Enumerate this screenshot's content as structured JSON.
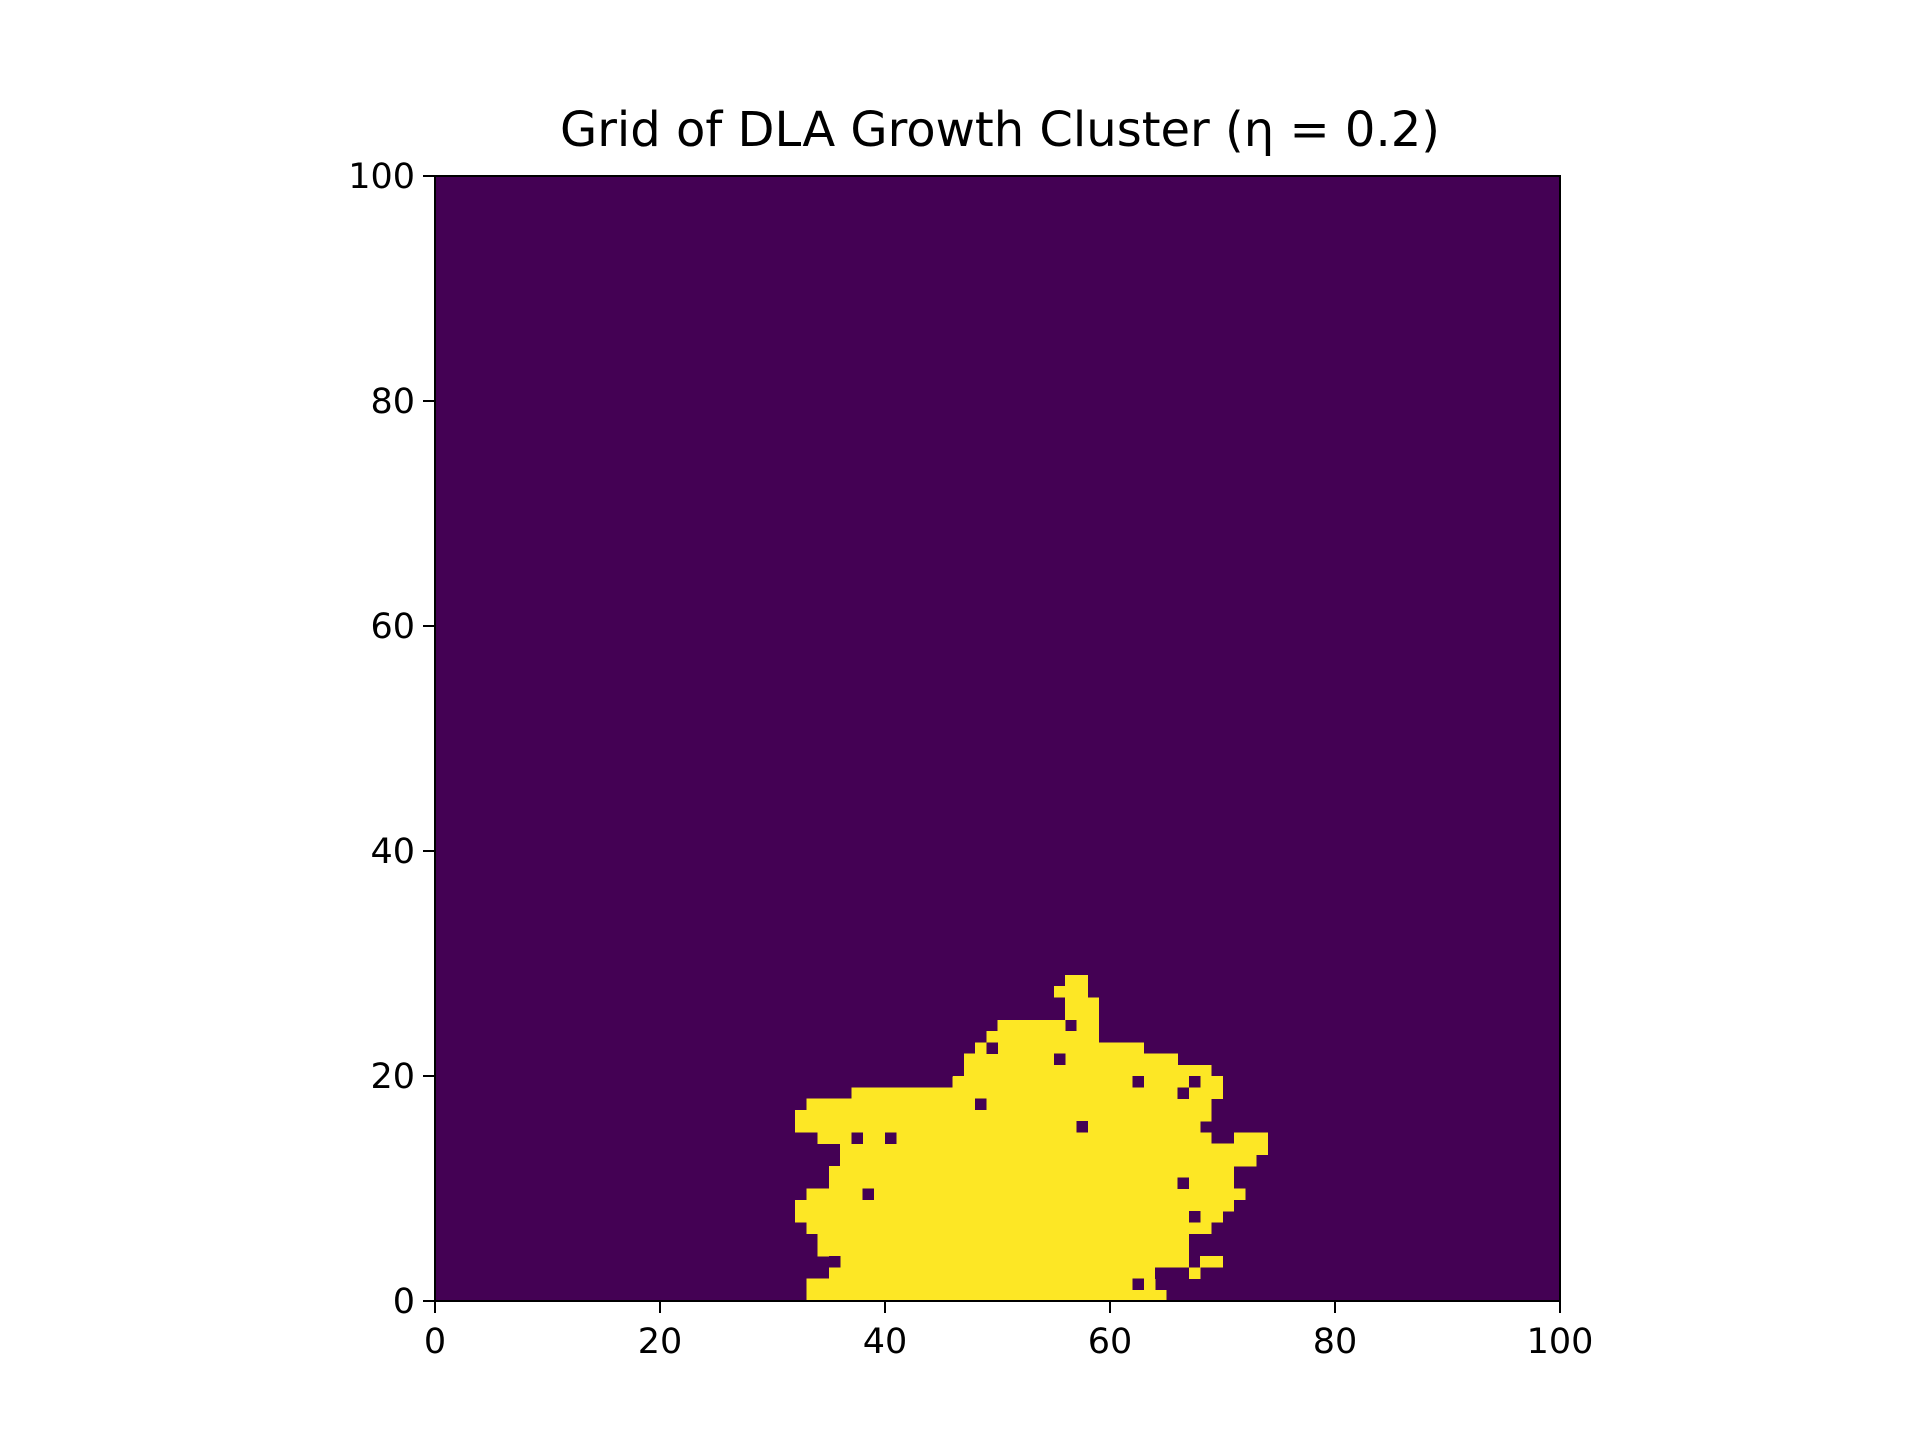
{
  "chart_data": {
    "type": "heatmap",
    "title": "Grid of DLA Growth Cluster (η = 0.2)",
    "xlabel": "",
    "ylabel": "",
    "xlim": [
      0,
      100
    ],
    "ylim": [
      0,
      100
    ],
    "x_ticks": [
      0,
      20,
      40,
      60,
      80,
      100
    ],
    "y_ticks": [
      0,
      20,
      40,
      60,
      80,
      100
    ],
    "x_tick_labels": [
      "0",
      "20",
      "40",
      "60",
      "80",
      "100"
    ],
    "y_tick_labels": [
      "0",
      "20",
      "40",
      "60",
      "80",
      "100"
    ],
    "grid": false,
    "legend": "none",
    "colormap": "viridis",
    "colors": {
      "empty": "#440154",
      "occupied": "#fde725",
      "axes": "#000000",
      "background": "#ffffff"
    },
    "grid_size": [
      100,
      100
    ],
    "cell_values": {
      "empty": 0,
      "occupied": 1
    },
    "occupied_rows": [
      {
        "y": 0,
        "spans": [
          [
            33,
            64
          ]
        ]
      },
      {
        "y": 1,
        "spans": [
          [
            33,
            63
          ]
        ]
      },
      {
        "y": 2,
        "spans": [
          [
            35,
            64
          ],
          [
            67,
            67
          ]
        ]
      },
      {
        "y": 3,
        "spans": [
          [
            35,
            66
          ],
          [
            68,
            69
          ]
        ]
      },
      {
        "y": 4,
        "spans": [
          [
            34,
            66
          ]
        ]
      },
      {
        "y": 5,
        "spans": [
          [
            34,
            66
          ]
        ]
      },
      {
        "y": 6,
        "spans": [
          [
            33,
            68
          ]
        ]
      },
      {
        "y": 7,
        "spans": [
          [
            32,
            69
          ]
        ]
      },
      {
        "y": 8,
        "spans": [
          [
            32,
            70
          ]
        ]
      },
      {
        "y": 9,
        "spans": [
          [
            33,
            71
          ]
        ]
      },
      {
        "y": 10,
        "spans": [
          [
            35,
            70
          ]
        ]
      },
      {
        "y": 11,
        "spans": [
          [
            35,
            70
          ]
        ]
      },
      {
        "y": 12,
        "spans": [
          [
            36,
            72
          ]
        ]
      },
      {
        "y": 13,
        "spans": [
          [
            36,
            73
          ]
        ]
      },
      {
        "y": 14,
        "spans": [
          [
            34,
            68
          ],
          [
            71,
            73
          ]
        ]
      },
      {
        "y": 15,
        "spans": [
          [
            32,
            67
          ]
        ]
      },
      {
        "y": 16,
        "spans": [
          [
            32,
            68
          ]
        ]
      },
      {
        "y": 17,
        "spans": [
          [
            33,
            68
          ]
        ]
      },
      {
        "y": 18,
        "spans": [
          [
            37,
            69
          ]
        ]
      },
      {
        "y": 19,
        "spans": [
          [
            46,
            69
          ]
        ]
      },
      {
        "y": 20,
        "spans": [
          [
            47,
            68
          ]
        ]
      },
      {
        "y": 21,
        "spans": [
          [
            47,
            65
          ]
        ]
      },
      {
        "y": 22,
        "spans": [
          [
            48,
            62
          ]
        ]
      },
      {
        "y": 23,
        "spans": [
          [
            49,
            58
          ]
        ]
      },
      {
        "y": 24,
        "spans": [
          [
            50,
            55
          ],
          [
            57,
            58
          ]
        ]
      },
      {
        "y": 25,
        "spans": [
          [
            56,
            58
          ]
        ]
      },
      {
        "y": 26,
        "spans": [
          [
            56,
            58
          ]
        ]
      },
      {
        "y": 27,
        "spans": [
          [
            55,
            57
          ]
        ]
      },
      {
        "y": 28,
        "spans": [
          [
            56,
            57
          ]
        ]
      }
    ],
    "holes": [
      [
        62,
        1
      ],
      [
        64,
        2
      ],
      [
        35,
        3
      ],
      [
        67,
        7
      ],
      [
        38,
        9
      ],
      [
        66,
        10
      ],
      [
        57,
        15
      ],
      [
        37,
        14
      ],
      [
        40,
        14
      ],
      [
        48,
        17
      ],
      [
        62,
        19
      ],
      [
        55,
        21
      ],
      [
        49,
        22
      ],
      [
        67,
        19
      ],
      [
        66,
        18
      ],
      [
        45,
        20
      ]
    ]
  }
}
